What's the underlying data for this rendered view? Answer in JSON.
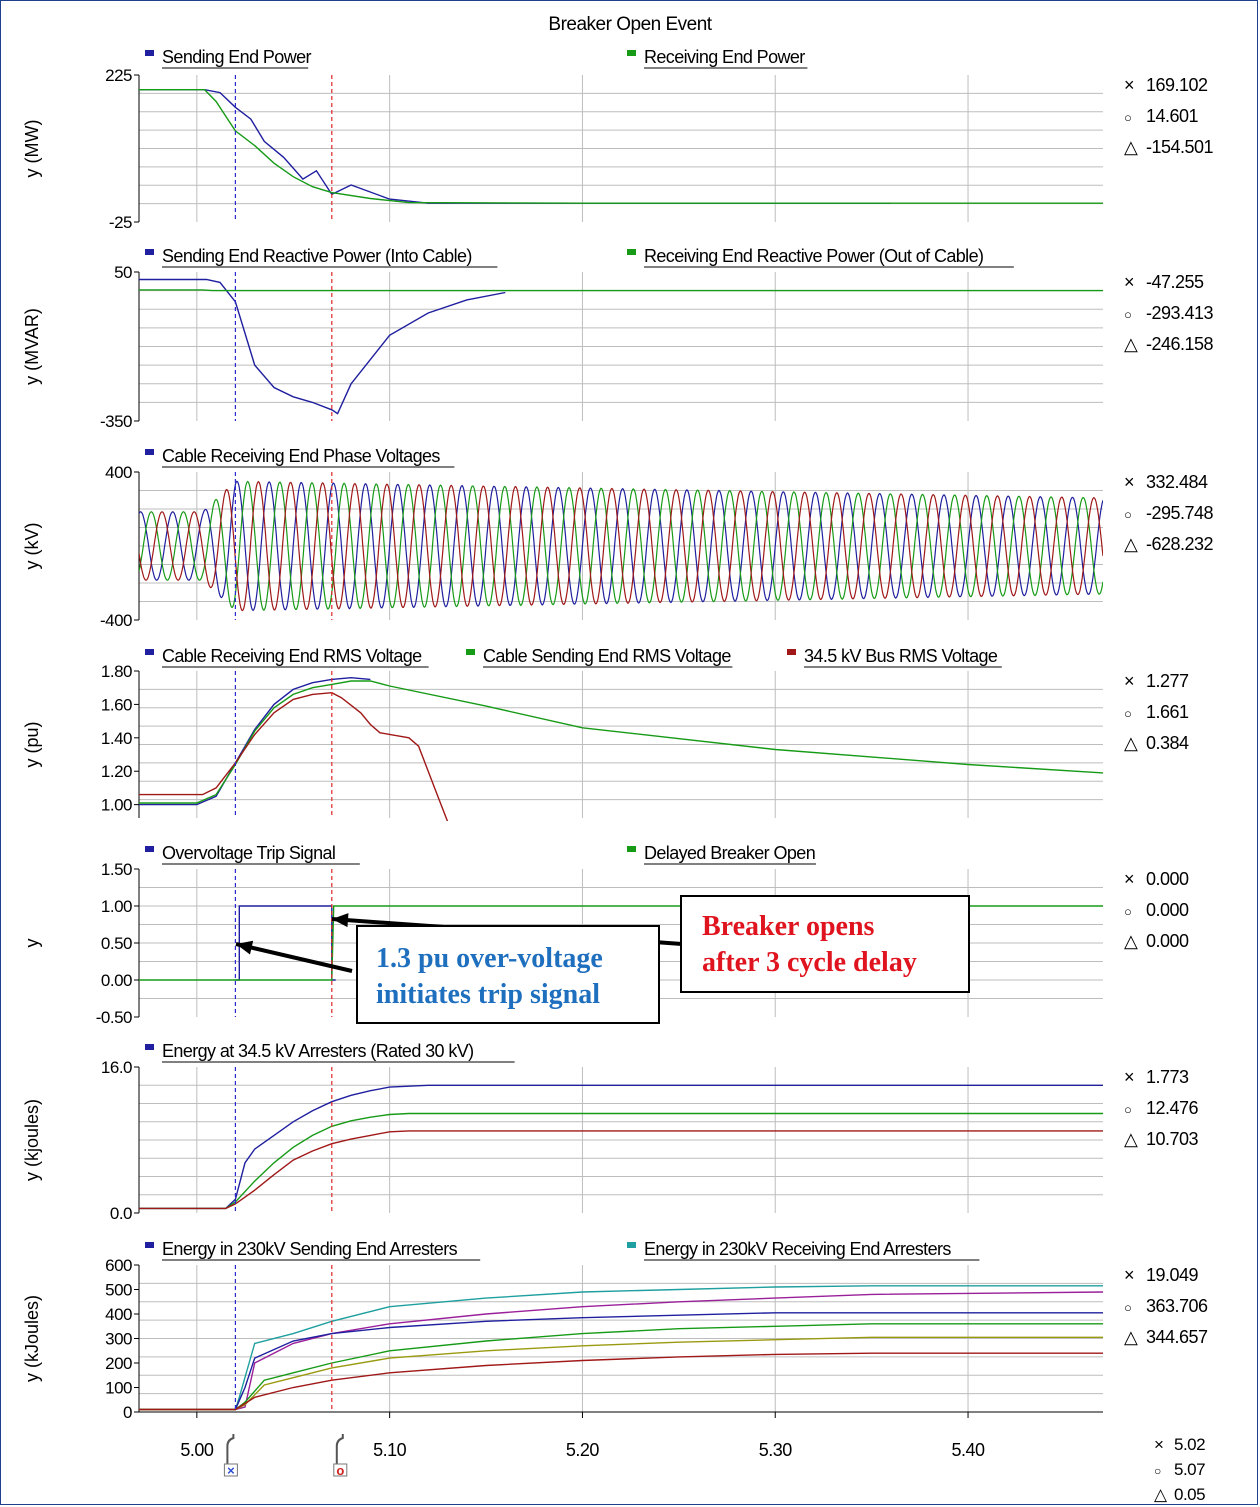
{
  "title": "Breaker Open Event",
  "colors": {
    "blue": "#1f1f9f",
    "green": "#179b17",
    "red": "#a01818",
    "purple": "#9a1f9a",
    "teal": "#1f9f9f",
    "olive": "#9a9a10",
    "grid": "#bdbdbd",
    "cursor1": "#2a2ad0",
    "cursor2": "#e02828"
  },
  "cursors": {
    "x1": 5.02,
    "x2": 5.07,
    "bottom": {
      "x1": "5.02",
      "x2": "5.07",
      "delta": "0.05"
    },
    "marker1_icon": "cursor-x-icon",
    "marker2_icon": "cursor-o-icon"
  },
  "callouts": {
    "trip": [
      "1.3 pu over-voltage",
      "initiates trip signal"
    ],
    "breaker": [
      "Breaker opens",
      "after 3 cycle delay"
    ]
  },
  "chart_data": [
    {
      "type": "line",
      "ylabel": "y (MW)",
      "ylim": [
        -25,
        225
      ],
      "yticks": [
        "225",
        "-25"
      ],
      "xlim": [
        4.97,
        5.47
      ],
      "legend": [
        {
          "name": "Sending End Power",
          "color": "#1f1f9f"
        },
        {
          "name": "Receiving End Power",
          "color": "#179b17"
        }
      ],
      "series": [
        {
          "name": "Sending End Power",
          "color": "#1f1f9f",
          "x": [
            4.97,
            5.004,
            5.012,
            5.02,
            5.028,
            5.035,
            5.045,
            5.055,
            5.062,
            5.07,
            5.08,
            5.1,
            5.12,
            5.2,
            5.36
          ],
          "y": [
            200,
            200,
            195,
            170,
            150,
            112,
            85,
            48,
            62,
            22,
            38,
            14,
            7,
            7,
            7
          ]
        },
        {
          "name": "Receiving End Power",
          "color": "#179b17",
          "x": [
            4.97,
            5.004,
            5.01,
            5.02,
            5.03,
            5.04,
            5.05,
            5.06,
            5.07,
            5.09,
            5.11,
            5.2,
            5.47
          ],
          "y": [
            200,
            200,
            180,
            130,
            105,
            75,
            52,
            35,
            25,
            15,
            8,
            7,
            7
          ]
        }
      ],
      "readout": {
        "x": "169.102",
        "o": "14.601",
        "d": "-154.501"
      }
    },
    {
      "type": "line",
      "ylabel": "y (MVAR)",
      "ylim": [
        -350,
        50
      ],
      "yticks": [
        "50",
        "-350"
      ],
      "xlim": [
        4.97,
        5.47
      ],
      "legend": [
        {
          "name": "Sending End Reactive Power (Into Cable)",
          "color": "#1f1f9f"
        },
        {
          "name": "Receiving End Reactive Power (Out of Cable)",
          "color": "#179b17"
        }
      ],
      "series": [
        {
          "name": "Sending End Reactive Power (Into Cable)",
          "color": "#1f1f9f",
          "x": [
            4.97,
            5.005,
            5.012,
            5.02,
            5.03,
            5.04,
            5.05,
            5.06,
            5.07,
            5.073,
            5.08,
            5.1,
            5.12,
            5.14,
            5.16
          ],
          "y": [
            30,
            30,
            22,
            -30,
            -200,
            -260,
            -285,
            -300,
            -320,
            -330,
            -250,
            -120,
            -60,
            -25,
            -5
          ]
        },
        {
          "name": "Receiving End Reactive Power (Out of Cable)",
          "color": "#179b17",
          "x": [
            4.97,
            5.003,
            5.008,
            5.47
          ],
          "y": [
            2,
            2,
            0,
            0
          ]
        }
      ],
      "readout": {
        "x": "-47.255",
        "o": "-293.413",
        "d": "-246.158"
      }
    },
    {
      "type": "line",
      "ylabel": "y (kV)",
      "ylim": [
        -400,
        400
      ],
      "yticks": [
        "400",
        "-400"
      ],
      "xlim": [
        4.97,
        5.47
      ],
      "legend": [
        {
          "name": "Cable Receiving End Phase Voltages",
          "color": "#1f1f9f"
        }
      ],
      "waveform": {
        "frequency_hz": 60,
        "amplitude_before": 185,
        "amplitude_peak": 350,
        "amplitude_end": 260,
        "transition_start": 5.003,
        "transition_end": 5.02
      },
      "series": [
        {
          "color": "#1f1f9f"
        },
        {
          "color": "#179b17"
        },
        {
          "color": "#a01818"
        }
      ],
      "readout": {
        "x": "332.484",
        "o": "-295.748",
        "d": "-628.232"
      }
    },
    {
      "type": "line",
      "ylabel": "y (pu)",
      "ylim": [
        0.92,
        1.8
      ],
      "yticks": [
        "1.80",
        "1.60",
        "1.40",
        "1.20",
        "1.00"
      ],
      "yticks_values": [
        1.8,
        1.6,
        1.4,
        1.2,
        1.0
      ],
      "xlim": [
        4.97,
        5.47
      ],
      "legend": [
        {
          "name": "Cable Receiving End RMS Voltage",
          "color": "#1f1f9f"
        },
        {
          "name": "Cable Sending End RMS Voltage",
          "color": "#179b17"
        },
        {
          "name": "34.5 kV Bus RMS Voltage",
          "color": "#a01818"
        }
      ],
      "series": [
        {
          "name": "Cable Receiving End RMS Voltage",
          "color": "#1f1f9f",
          "x": [
            4.97,
            5.0,
            5.01,
            5.02,
            5.03,
            5.04,
            5.05,
            5.06,
            5.07,
            5.08,
            5.09
          ],
          "y": [
            1.0,
            1.0,
            1.05,
            1.25,
            1.45,
            1.6,
            1.69,
            1.73,
            1.75,
            1.76,
            1.75
          ]
        },
        {
          "name": "Cable Sending End RMS Voltage",
          "color": "#179b17",
          "x": [
            4.97,
            5.0,
            5.01,
            5.02,
            5.03,
            5.04,
            5.05,
            5.06,
            5.07,
            5.08,
            5.09,
            5.1,
            5.15,
            5.2,
            5.3,
            5.4,
            5.47
          ],
          "y": [
            1.01,
            1.01,
            1.06,
            1.24,
            1.44,
            1.58,
            1.66,
            1.7,
            1.72,
            1.74,
            1.74,
            1.71,
            1.59,
            1.46,
            1.33,
            1.24,
            1.19
          ]
        },
        {
          "name": "34.5 kV Bus RMS Voltage",
          "color": "#a01818",
          "x": [
            4.97,
            5.003,
            5.01,
            5.02,
            5.03,
            5.04,
            5.05,
            5.06,
            5.07,
            5.075,
            5.085,
            5.09,
            5.095,
            5.11,
            5.115,
            5.12,
            5.125,
            5.13
          ],
          "y": [
            1.06,
            1.06,
            1.1,
            1.25,
            1.42,
            1.55,
            1.63,
            1.66,
            1.67,
            1.64,
            1.55,
            1.48,
            1.43,
            1.4,
            1.35,
            1.2,
            1.05,
            0.9
          ]
        }
      ],
      "readout": {
        "x": "1.277",
        "o": "1.661",
        "d": "0.384"
      }
    },
    {
      "type": "line",
      "ylabel": "y",
      "ylim": [
        -0.5,
        1.5
      ],
      "yticks": [
        "1.50",
        "1.00",
        "0.50",
        "0.00",
        "-0.50"
      ],
      "yticks_values": [
        1.5,
        1.0,
        0.5,
        0.0,
        -0.5
      ],
      "xlim": [
        4.97,
        5.47
      ],
      "legend": [
        {
          "name": "Overvoltage Trip Signal",
          "color": "#1f1f9f"
        },
        {
          "name": "Delayed Breaker Open",
          "color": "#179b17"
        }
      ],
      "series": [
        {
          "name": "Overvoltage Trip Signal",
          "color": "#1f1f9f",
          "x": [
            5.02,
            5.022,
            5.022,
            5.07,
            5.07,
            5.072
          ],
          "y": [
            0,
            0,
            1,
            1,
            0,
            0
          ]
        },
        {
          "name": "Delayed Breaker Open",
          "color": "#179b17",
          "x": [
            4.97,
            5.07,
            5.071,
            5.47
          ],
          "y": [
            0,
            0,
            1,
            1
          ]
        }
      ],
      "readout": {
        "x": "0.000",
        "o": "0.000",
        "d": "0.000"
      }
    },
    {
      "type": "line",
      "ylabel": "y (kjoules)",
      "ylim": [
        0,
        16
      ],
      "yticks": [
        "16.0",
        "0.0"
      ],
      "yticks_values": [
        16,
        0
      ],
      "xlim": [
        4.97,
        5.47
      ],
      "legend": [
        {
          "name": "Energy at 34.5 kV Arresters (Rated 30 kV)",
          "color": "#1f1f9f"
        }
      ],
      "series": [
        {
          "color": "#1f1f9f",
          "x": [
            4.97,
            5.015,
            5.02,
            5.025,
            5.03,
            5.04,
            5.05,
            5.06,
            5.07,
            5.08,
            5.09,
            5.1,
            5.12,
            5.47
          ],
          "y": [
            0.5,
            0.5,
            1.5,
            5.5,
            7.0,
            8.5,
            10.0,
            11.2,
            12.2,
            12.9,
            13.4,
            13.8,
            14.0,
            14.0
          ]
        },
        {
          "color": "#179b17",
          "x": [
            4.97,
            5.015,
            5.02,
            5.03,
            5.04,
            5.05,
            5.06,
            5.07,
            5.08,
            5.09,
            5.1,
            5.11,
            5.47
          ],
          "y": [
            0.5,
            0.5,
            1.2,
            3.5,
            5.5,
            7.2,
            8.5,
            9.5,
            10.1,
            10.5,
            10.8,
            10.9,
            10.9
          ]
        },
        {
          "color": "#a01818",
          "x": [
            4.97,
            5.015,
            5.02,
            5.03,
            5.04,
            5.05,
            5.06,
            5.07,
            5.08,
            5.09,
            5.1,
            5.11,
            5.47
          ],
          "y": [
            0.5,
            0.5,
            1.0,
            2.5,
            4.2,
            5.8,
            6.8,
            7.6,
            8.1,
            8.5,
            8.9,
            9.0,
            9.0
          ]
        }
      ],
      "readout": {
        "x": "1.773",
        "o": "12.476",
        "d": "10.703"
      }
    },
    {
      "type": "line",
      "ylabel": "y (kJoules)",
      "ylim": [
        0,
        600
      ],
      "yticks": [
        "600",
        "500",
        "400",
        "300",
        "200",
        "100",
        "0"
      ],
      "yticks_values": [
        600,
        500,
        400,
        300,
        200,
        100,
        0
      ],
      "xlim": [
        4.97,
        5.47
      ],
      "xticks": [
        "5.00",
        "5.10",
        "5.20",
        "5.30",
        "5.40"
      ],
      "xticks_values": [
        5.0,
        5.1,
        5.2,
        5.3,
        5.4
      ],
      "legend": [
        {
          "name": "Energy in 230kV Sending End Arresters",
          "color": "#1f1f9f"
        },
        {
          "name": "Energy in 230kV Receiving End Arresters",
          "color": "#1f9f9f"
        }
      ],
      "series": [
        {
          "color": "#1f9f9f",
          "x": [
            4.97,
            5.02,
            5.022,
            5.03,
            5.05,
            5.07,
            5.1,
            5.15,
            5.2,
            5.25,
            5.3,
            5.35,
            5.47
          ],
          "y": [
            10,
            10,
            60,
            280,
            320,
            370,
            430,
            465,
            490,
            500,
            510,
            515,
            515
          ]
        },
        {
          "color": "#9a1f9a",
          "x": [
            4.97,
            5.02,
            5.025,
            5.03,
            5.05,
            5.07,
            5.1,
            5.15,
            5.2,
            5.25,
            5.3,
            5.35,
            5.47
          ],
          "y": [
            10,
            10,
            20,
            200,
            280,
            320,
            360,
            400,
            430,
            450,
            465,
            480,
            490
          ]
        },
        {
          "color": "#1f1f9f",
          "x": [
            4.97,
            5.02,
            5.025,
            5.03,
            5.05,
            5.07,
            5.1,
            5.15,
            5.2,
            5.25,
            5.3,
            5.47
          ],
          "y": [
            10,
            10,
            100,
            220,
            290,
            320,
            345,
            370,
            385,
            395,
            405,
            405
          ]
        },
        {
          "color": "#179b17",
          "x": [
            4.97,
            5.02,
            5.025,
            5.035,
            5.05,
            5.07,
            5.1,
            5.15,
            5.2,
            5.25,
            5.3,
            5.35,
            5.47
          ],
          "y": [
            10,
            10,
            40,
            130,
            160,
            200,
            250,
            290,
            320,
            340,
            350,
            360,
            360
          ]
        },
        {
          "color": "#9a9a10",
          "x": [
            4.97,
            5.02,
            5.025,
            5.035,
            5.05,
            5.07,
            5.1,
            5.15,
            5.2,
            5.25,
            5.3,
            5.35,
            5.47
          ],
          "y": [
            10,
            10,
            30,
            110,
            140,
            180,
            220,
            250,
            270,
            285,
            295,
            305,
            305
          ]
        },
        {
          "color": "#a01818",
          "x": [
            4.97,
            5.02,
            5.03,
            5.05,
            5.07,
            5.1,
            5.15,
            5.2,
            5.25,
            5.3,
            5.35,
            5.47
          ],
          "y": [
            10,
            10,
            60,
            100,
            130,
            160,
            190,
            210,
            225,
            235,
            240,
            240
          ]
        }
      ],
      "readout": {
        "x": "19.049",
        "o": "363.706",
        "d": "344.657"
      }
    }
  ]
}
